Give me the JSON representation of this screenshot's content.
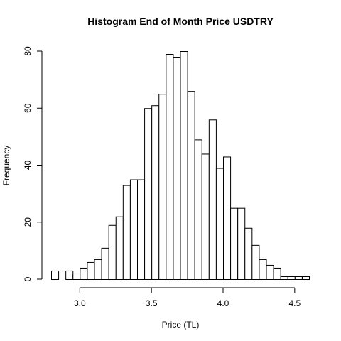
{
  "chart_data": {
    "type": "bar",
    "title": "Histogram End of Month Price USDTRY",
    "xlabel": "Price (TL)",
    "ylabel": "Frequency",
    "bin_width": 0.05,
    "bin_start": 2.8,
    "values": [
      3,
      0,
      3,
      2,
      4,
      6,
      7,
      11,
      19,
      22,
      33,
      35,
      35,
      60,
      61,
      65,
      79,
      78,
      80,
      66,
      49,
      44,
      56,
      39,
      43,
      25,
      25,
      18,
      12,
      7,
      5,
      4,
      1,
      1,
      1,
      1
    ],
    "xlim": [
      2.8,
      4.6
    ],
    "ylim": [
      0,
      80
    ],
    "xticks": [
      "3.0",
      "3.5",
      "4.0",
      "4.5"
    ],
    "xtick_values": [
      3.0,
      3.5,
      4.0,
      4.5
    ],
    "yticks": [
      "0",
      "20",
      "40",
      "60",
      "80"
    ],
    "ytick_values": [
      0,
      20,
      40,
      60,
      80
    ],
    "grid": false
  }
}
